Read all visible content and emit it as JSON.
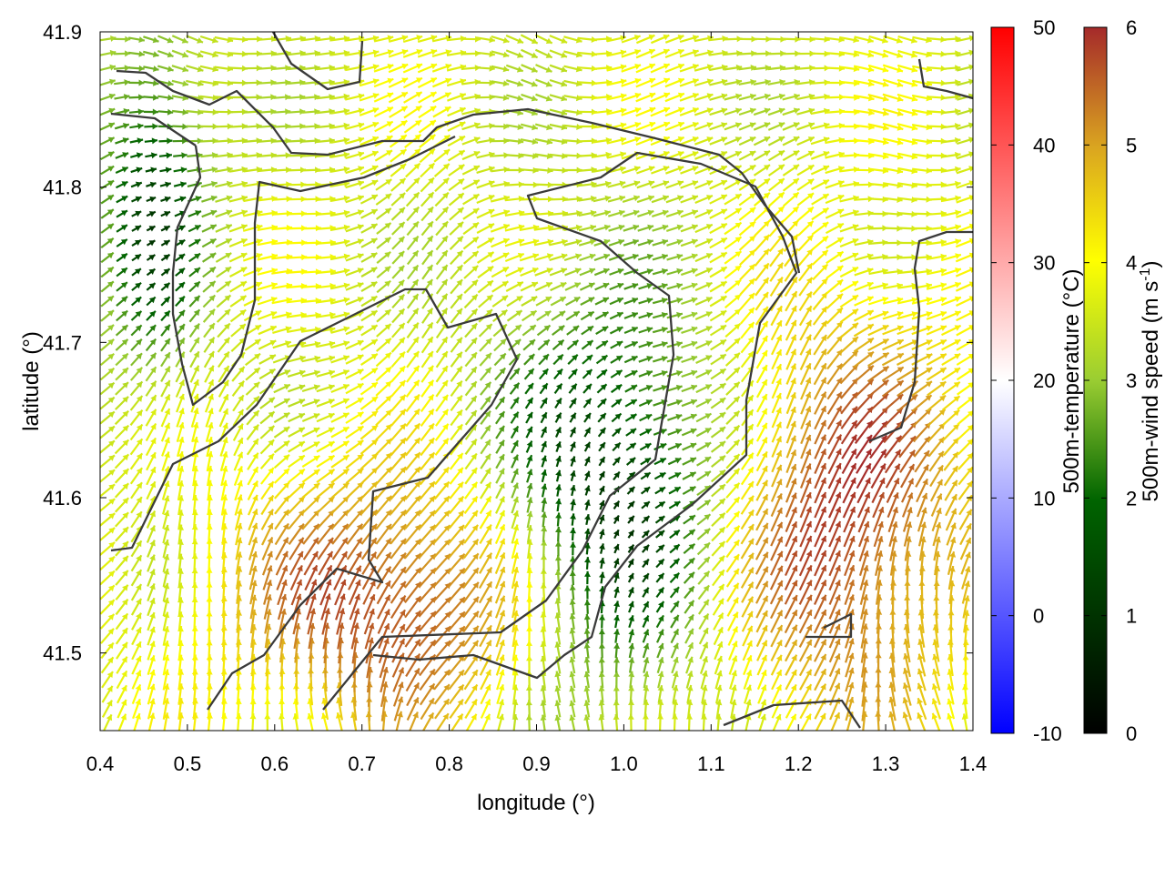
{
  "chart_data": {
    "type": "quiver",
    "xlabel": "longitude (°)",
    "ylabel": "latitude (°)",
    "xlim": [
      0.4,
      1.4
    ],
    "ylim": [
      41.45,
      41.9
    ],
    "xticks": [
      "0.4",
      "0.5",
      "0.6",
      "0.7",
      "0.8",
      "0.9",
      "1.0",
      "1.1",
      "1.2",
      "1.3",
      "1.4"
    ],
    "yticks": [
      "41.5",
      "41.6",
      "41.7",
      "41.8",
      "41.9"
    ],
    "vector_field": {
      "variable": "500m-wind",
      "dominant_direction": "northward in the south, turning eastward in the north",
      "speed_range": [
        0,
        6
      ],
      "high_speed_regions": [
        {
          "lon_range": [
            0.55,
            0.95
          ],
          "lat_range": [
            41.45,
            41.62
          ],
          "speed": 6
        },
        {
          "lon_range": [
            1.1,
            1.4
          ],
          "lat_range": [
            41.45,
            41.72
          ],
          "speed": 6
        }
      ],
      "low_speed_regions": [
        {
          "lon_range": [
            0.4,
            0.52
          ],
          "lat_range": [
            41.68,
            41.9
          ],
          "speed": 2
        },
        {
          "lon_range": [
            0.85,
            1.12
          ],
          "lat_range": [
            41.47,
            41.72
          ],
          "speed": 1.5
        }
      ]
    },
    "colorbars": [
      {
        "label": "500m-temperature (°C)",
        "range": [
          -10,
          50
        ],
        "ticks": [
          "50",
          "40",
          "30",
          "20",
          "10",
          "0",
          "-10"
        ],
        "colors": [
          "#0000ff",
          "#ffffff",
          "#ff0000"
        ]
      },
      {
        "label": "500m-wind speed (m s",
        "label_sup": "-1",
        "label_end": ")",
        "range": [
          0,
          6
        ],
        "ticks": [
          "6",
          "5",
          "4",
          "3",
          "2",
          "1",
          "0"
        ],
        "colors": [
          "#000000",
          "#006400",
          "#9acd32",
          "#ffff00",
          "#daa520",
          "#a52a2a"
        ]
      }
    ],
    "grid": false,
    "legend": "none"
  }
}
